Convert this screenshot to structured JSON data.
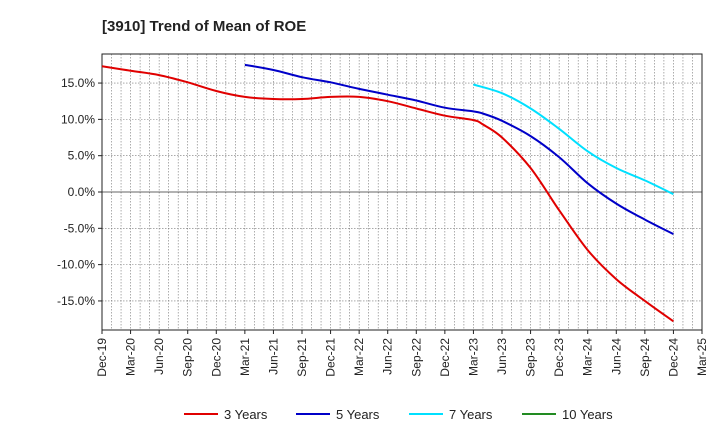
{
  "chart_data": {
    "type": "line",
    "title": "[3910]  Trend of Mean of ROE",
    "xlabel": "",
    "ylabel": "",
    "ylim": [
      -19.0,
      19.0
    ],
    "y_ticks": [
      15,
      10,
      5,
      0,
      -5,
      -10,
      -15
    ],
    "y_tick_labels": [
      "15.0%",
      "10.0%",
      "5.0%",
      "0.0%",
      "-5.0%",
      "-10.0%",
      "-15.0%"
    ],
    "x_tick_labels": [
      "Dec-19",
      "Mar-20",
      "Jun-20",
      "Sep-20",
      "Dec-20",
      "Mar-21",
      "Jun-21",
      "Sep-21",
      "Dec-21",
      "Mar-22",
      "Jun-22",
      "Sep-22",
      "Dec-22",
      "Mar-23",
      "Jun-23",
      "Sep-23",
      "Dec-23",
      "Mar-24",
      "Jun-24",
      "Sep-24",
      "Dec-24",
      "Mar-25"
    ],
    "grid": true,
    "legend_position": "bottom",
    "series": [
      {
        "name": "3 Years",
        "color": "#e00000",
        "points": [
          [
            "Dec-19",
            17.3
          ],
          [
            "Mar-20",
            16.7
          ],
          [
            "Jun-20",
            16.1
          ],
          [
            "Sep-20",
            15.1
          ],
          [
            "Dec-20",
            13.9
          ],
          [
            "Mar-21",
            13.1
          ],
          [
            "Jun-21",
            12.8
          ],
          [
            "Sep-21",
            12.8
          ],
          [
            "Dec-21",
            13.1
          ],
          [
            "Mar-22",
            13.1
          ],
          [
            "Jun-22",
            12.5
          ],
          [
            "Sep-22",
            11.5
          ],
          [
            "Dec-22",
            10.5
          ],
          [
            "Mar-23",
            9.9
          ],
          [
            "Apr-23",
            9.3
          ],
          [
            "Jun-23",
            7.5
          ],
          [
            "Sep-23",
            3.3
          ],
          [
            "Dec-23",
            -2.5
          ],
          [
            "Mar-24",
            -8.0
          ],
          [
            "Jun-24",
            -12.0
          ],
          [
            "Sep-24",
            -15.0
          ],
          [
            "Dec-24",
            -17.8
          ]
        ]
      },
      {
        "name": "5 Years",
        "color": "#0000c8",
        "points": [
          [
            "Mar-21",
            17.5
          ],
          [
            "Jun-21",
            16.8
          ],
          [
            "Sep-21",
            15.8
          ],
          [
            "Dec-21",
            15.1
          ],
          [
            "Mar-22",
            14.2
          ],
          [
            "Jun-22",
            13.4
          ],
          [
            "Sep-22",
            12.6
          ],
          [
            "Dec-22",
            11.6
          ],
          [
            "Mar-23",
            11.1
          ],
          [
            "Apr-23",
            10.8
          ],
          [
            "Jun-23",
            9.8
          ],
          [
            "Sep-23",
            7.7
          ],
          [
            "Dec-23",
            4.8
          ],
          [
            "Mar-24",
            1.2
          ],
          [
            "Jun-24",
            -1.6
          ],
          [
            "Sep-24",
            -3.8
          ],
          [
            "Dec-24",
            -5.8
          ]
        ]
      },
      {
        "name": "7 Years",
        "color": "#00e0ff",
        "points": [
          [
            "Mar-23",
            14.8
          ],
          [
            "Jun-23",
            13.6
          ],
          [
            "Sep-23",
            11.5
          ],
          [
            "Dec-23",
            8.7
          ],
          [
            "Mar-24",
            5.6
          ],
          [
            "Jun-24",
            3.3
          ],
          [
            "Sep-24",
            1.6
          ],
          [
            "Dec-24",
            -0.3
          ]
        ]
      },
      {
        "name": "10 Years",
        "color": "#228b22",
        "points": []
      }
    ]
  }
}
